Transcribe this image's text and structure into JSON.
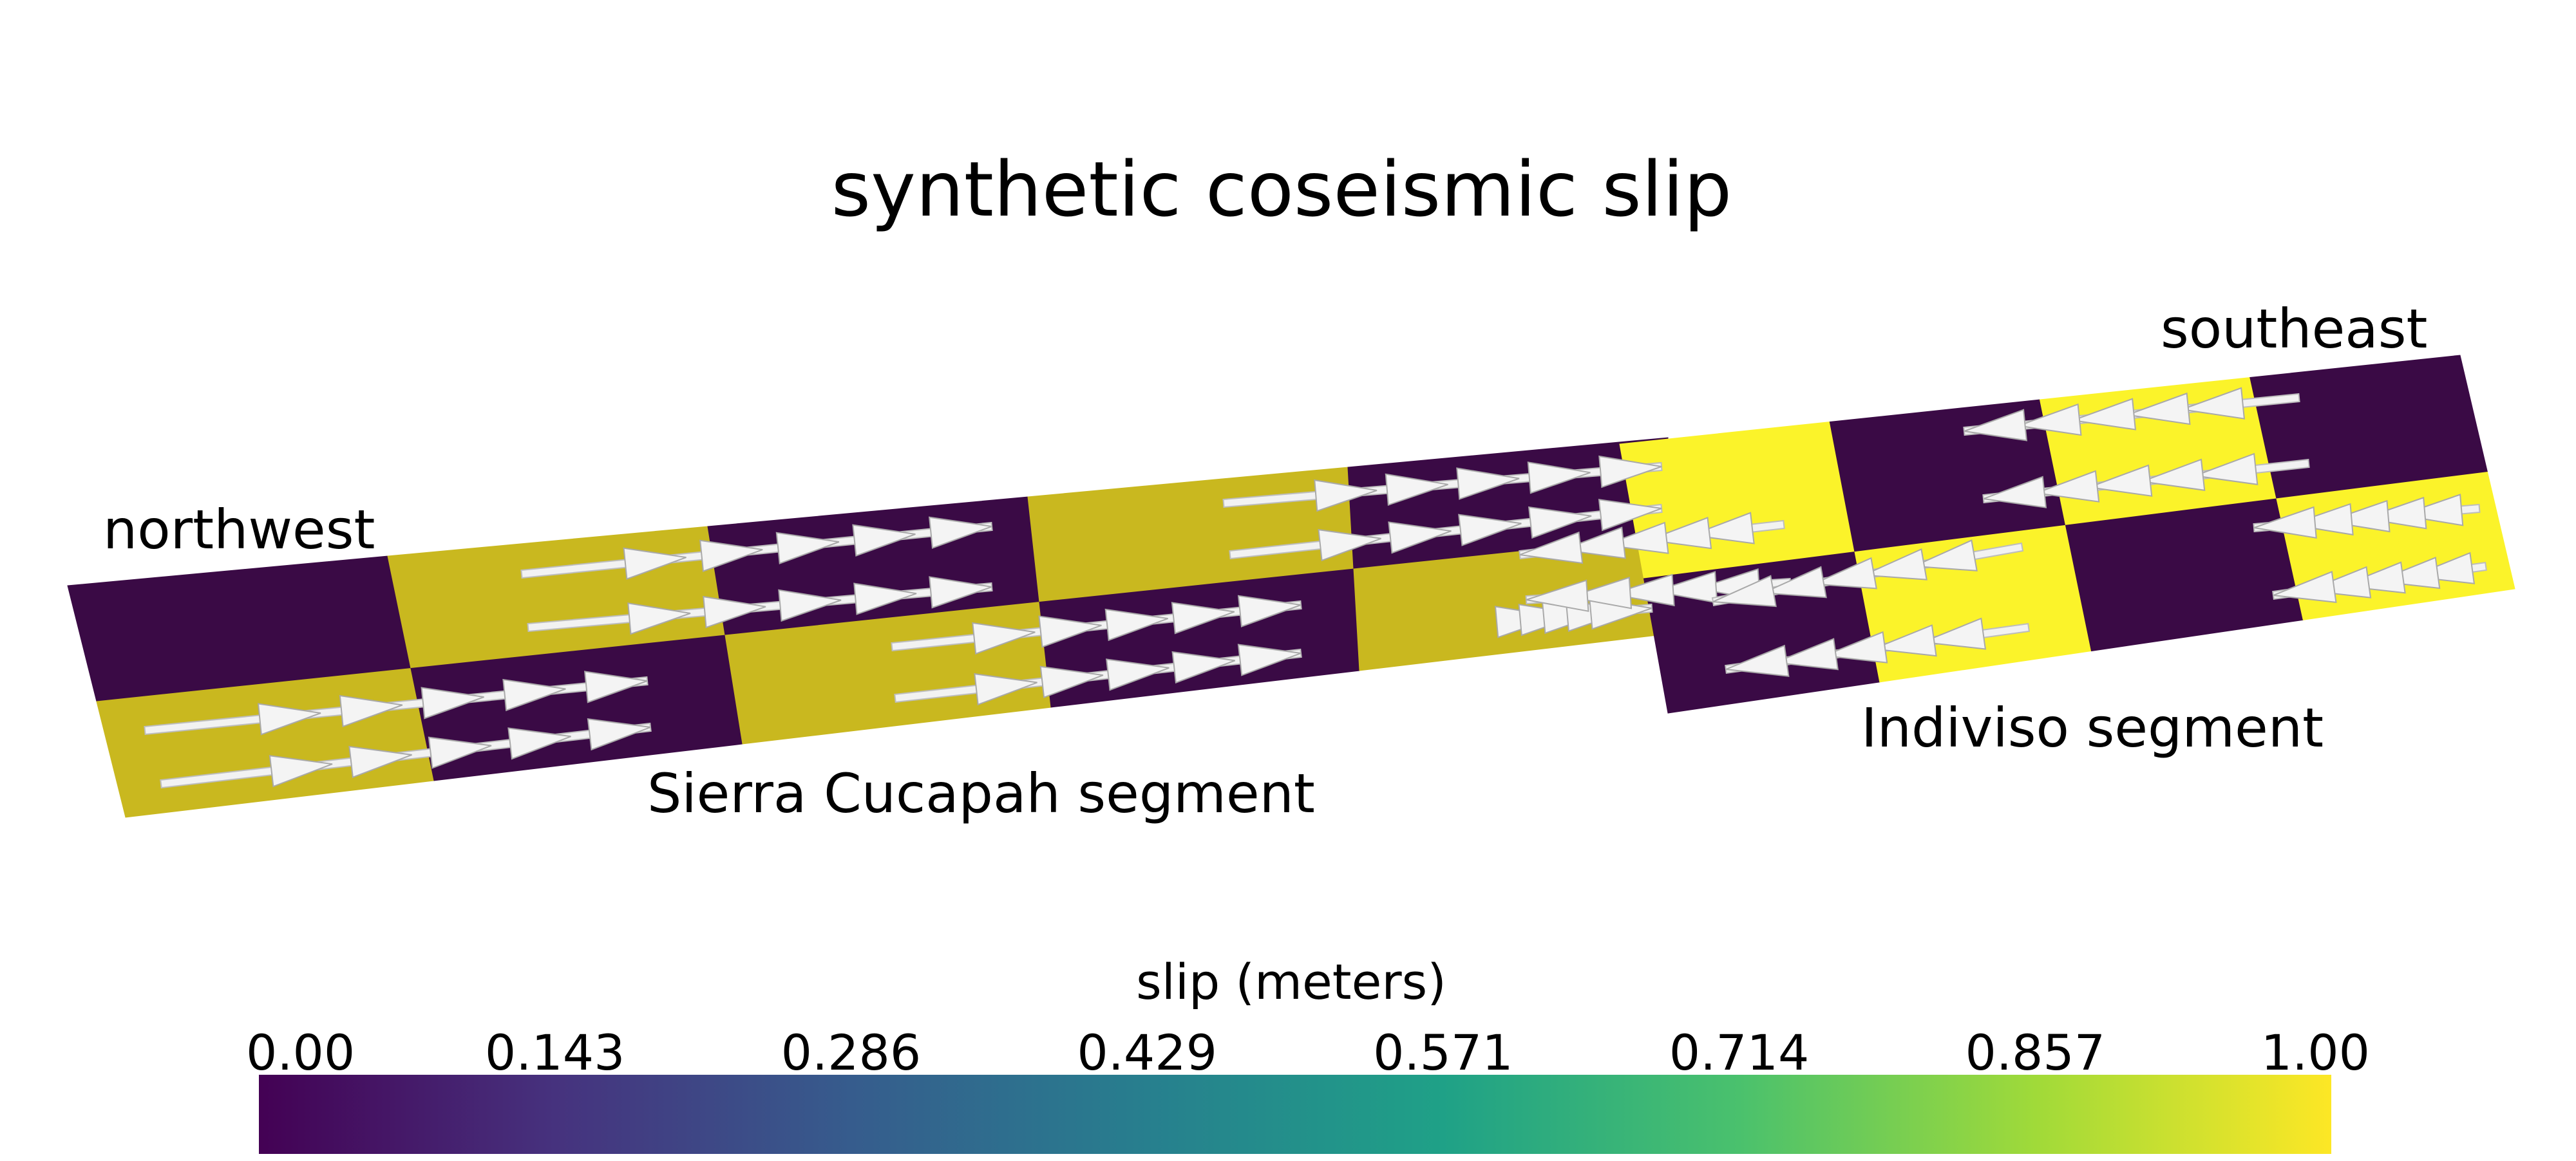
{
  "title": "synthetic coseismic slip",
  "labels": {
    "northwest": "northwest",
    "southeast": "southeast",
    "sierra_segment": "Sierra Cucapah segment",
    "indiviso_segment": "Indiviso segment"
  },
  "colorbar": {
    "title": "slip (meters)",
    "ticks": [
      "0.00",
      "0.143",
      "0.286",
      "0.429",
      "0.571",
      "0.714",
      "0.857",
      "1.00"
    ],
    "colormap": "viridis",
    "stops": [
      "#440154",
      "#46327e",
      "#365c8d",
      "#277f8e",
      "#1fa187",
      "#4ac16d",
      "#a0da39",
      "#fde725"
    ]
  },
  "colors": {
    "low_slip": "#3a0a45",
    "high_slip_sierra": "#c9b81f",
    "high_slip_indiviso": "#fbf32a",
    "arrow": "#f2f2f2"
  },
  "segments": {
    "sierra_cucapah": {
      "patch_slip": [
        [
          0,
          1,
          0,
          1,
          0
        ],
        [
          1,
          0,
          1,
          0,
          1
        ]
      ],
      "slip_direction": "right-lateral toward southeast"
    },
    "indiviso": {
      "patch_slip": [
        [
          1,
          0,
          1,
          0
        ],
        [
          0,
          1,
          0,
          1
        ]
      ],
      "slip_direction": "toward northwest"
    }
  }
}
